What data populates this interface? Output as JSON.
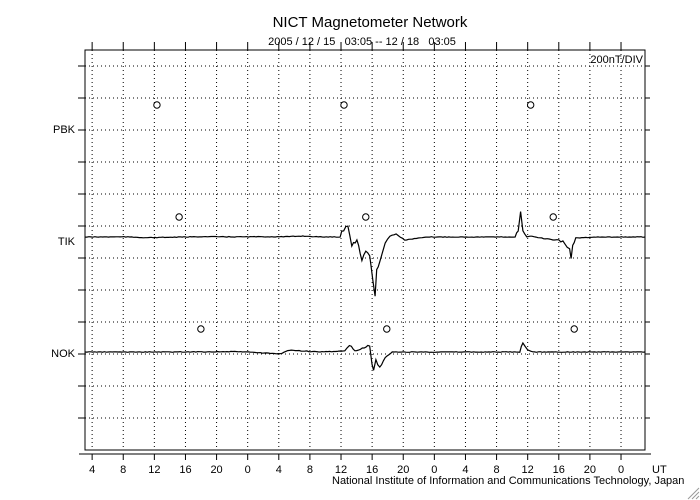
{
  "chart_data": {
    "type": "line",
    "title": "NICT Magnetometer Network",
    "subtitle": "2005 / 12 / 15   03:05 -- 12 / 18   03:05",
    "scale_label": "200nT/DIV",
    "xlabel": "UT",
    "credit": "National Institute of Information and Communications Technology, Japan",
    "x_unit": "hours since 2005/12/15 03:05",
    "xlim": [
      0,
      72
    ],
    "nT_per_div": 200,
    "x_tick_labels": [
      "4",
      "8",
      "12",
      "16",
      "20",
      "0",
      "4",
      "8",
      "12",
      "16",
      "20",
      "0",
      "4",
      "8",
      "12",
      "16",
      "20",
      "0"
    ],
    "grid": true,
    "series": [
      {
        "name": "PBK",
        "points": [],
        "markers": [
          9.25,
          33.3,
          57.3
        ]
      },
      {
        "name": "TIK",
        "points": [
          [
            0,
            0
          ],
          [
            5,
            1
          ],
          [
            8,
            -4
          ],
          [
            12,
            -1
          ],
          [
            15,
            2
          ],
          [
            20,
            1
          ],
          [
            26,
            2
          ],
          [
            28,
            6
          ],
          [
            30,
            1
          ],
          [
            32.8,
            0
          ],
          [
            33.0,
            37
          ],
          [
            33.8,
            69
          ],
          [
            34.3,
            -50
          ],
          [
            34.96,
            -19
          ],
          [
            35.6,
            -144
          ],
          [
            36.1,
            -81
          ],
          [
            36.6,
            -112
          ],
          [
            37.0,
            -269
          ],
          [
            37.3,
            -369
          ],
          [
            37.5,
            -206
          ],
          [
            37.9,
            -162
          ],
          [
            38.6,
            -31
          ],
          [
            39.2,
            6
          ],
          [
            40.0,
            19
          ],
          [
            41.1,
            -19
          ],
          [
            43.1,
            -6
          ],
          [
            44.3,
            0
          ],
          [
            50,
            0
          ],
          [
            55.3,
            0
          ],
          [
            55.7,
            44
          ],
          [
            56.0,
            156
          ],
          [
            56.3,
            44
          ],
          [
            56.8,
            0
          ],
          [
            57.2,
            6
          ],
          [
            58.5,
            -6
          ],
          [
            60.4,
            -19
          ],
          [
            61.7,
            -37
          ],
          [
            62.3,
            -81
          ],
          [
            62.5,
            -131
          ],
          [
            62.7,
            -50
          ],
          [
            63.1,
            -6
          ],
          [
            66.2,
            0
          ],
          [
            72,
            0
          ]
        ],
        "markers": [
          12.1,
          36.1,
          60.2
        ]
      },
      {
        "name": "NOK",
        "points": [
          [
            0,
            0
          ],
          [
            10,
            0
          ],
          [
            20,
            2
          ],
          [
            25.1,
            -12
          ],
          [
            26.3,
            12
          ],
          [
            30,
            0
          ],
          [
            33.4,
            6
          ],
          [
            34.0,
            44
          ],
          [
            34.7,
            6
          ],
          [
            36.6,
            37
          ],
          [
            36.9,
            -81
          ],
          [
            37.1,
            -113
          ],
          [
            37.4,
            -50
          ],
          [
            37.9,
            -100
          ],
          [
            38.6,
            -37
          ],
          [
            39.5,
            0
          ],
          [
            45,
            0
          ],
          [
            55.9,
            0
          ],
          [
            56.3,
            50
          ],
          [
            56.9,
            12
          ],
          [
            57.8,
            0
          ],
          [
            72,
            0
          ]
        ],
        "markers": [
          14.9,
          38.8,
          62.9
        ]
      }
    ],
    "colors": {
      "trace": "#000000",
      "grid": "#000000"
    }
  }
}
